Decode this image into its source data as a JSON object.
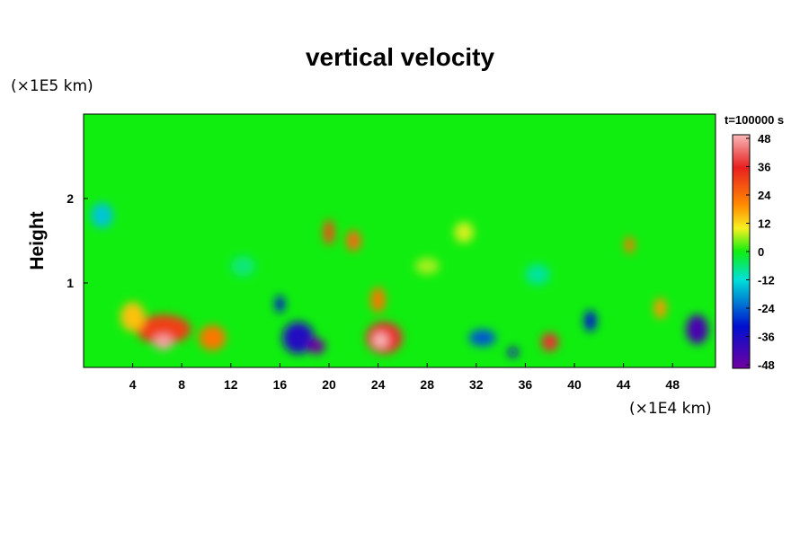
{
  "chart_data": {
    "type": "heatmap",
    "title": "vertical velocity",
    "subtitle": "",
    "ylabel": "Height",
    "xlabel": "",
    "x_unit": "(×1E4 km)",
    "y_unit": "(×1E5 km)",
    "time_label": "t=100000 s",
    "xlim": [
      0,
      51.5
    ],
    "ylim": [
      0,
      3
    ],
    "x_ticks": [
      4,
      8,
      12,
      16,
      20,
      24,
      28,
      32,
      36,
      40,
      44,
      48
    ],
    "y_ticks": [
      1,
      2
    ],
    "colorbar": {
      "min": -48,
      "max": 48,
      "ticks": [
        48,
        36,
        24,
        12,
        0,
        -12,
        -24,
        -36,
        -48
      ],
      "colors": [
        "#f8b8b8",
        "#e82020",
        "#ff8a00",
        "#f8f020",
        "#10ee10",
        "#00e0d8",
        "#0010d0",
        "#7000a0"
      ]
    },
    "background_value": 0,
    "features": [
      {
        "x": 6.5,
        "y": 0.45,
        "w": 4.5,
        "h": 0.35,
        "value": 30
      },
      {
        "x": 6.5,
        "y": 0.3,
        "w": 1.6,
        "h": 0.18,
        "value": 46
      },
      {
        "x": 10.5,
        "y": 0.35,
        "w": 2.2,
        "h": 0.3,
        "value": 22
      },
      {
        "x": 4.0,
        "y": 0.6,
        "w": 2.0,
        "h": 0.35,
        "value": 14
      },
      {
        "x": 17.5,
        "y": 0.35,
        "w": 2.6,
        "h": 0.38,
        "value": -36
      },
      {
        "x": 19.0,
        "y": 0.25,
        "w": 1.4,
        "h": 0.18,
        "value": -48
      },
      {
        "x": 16.0,
        "y": 0.75,
        "w": 0.8,
        "h": 0.2,
        "value": -30
      },
      {
        "x": 24.5,
        "y": 0.35,
        "w": 3.0,
        "h": 0.38,
        "value": 36
      },
      {
        "x": 24.2,
        "y": 0.32,
        "w": 1.2,
        "h": 0.18,
        "value": 48
      },
      {
        "x": 24.0,
        "y": 0.8,
        "w": 1.2,
        "h": 0.3,
        "value": 22
      },
      {
        "x": 20.0,
        "y": 1.6,
        "w": 0.9,
        "h": 0.3,
        "value": 28
      },
      {
        "x": 22.0,
        "y": 1.5,
        "w": 1.2,
        "h": 0.25,
        "value": 24
      },
      {
        "x": 32.5,
        "y": 0.35,
        "w": 2.2,
        "h": 0.2,
        "value": -24
      },
      {
        "x": 35.0,
        "y": 0.18,
        "w": 0.8,
        "h": 0.12,
        "value": -36
      },
      {
        "x": 38.0,
        "y": 0.3,
        "w": 1.4,
        "h": 0.22,
        "value": 36
      },
      {
        "x": 41.3,
        "y": 0.55,
        "w": 1.0,
        "h": 0.25,
        "value": -30
      },
      {
        "x": 50.0,
        "y": 0.45,
        "w": 1.8,
        "h": 0.35,
        "value": -42
      },
      {
        "x": 47.0,
        "y": 0.7,
        "w": 1.0,
        "h": 0.25,
        "value": 18
      },
      {
        "x": 1.5,
        "y": 1.8,
        "w": 1.8,
        "h": 0.3,
        "value": -14
      },
      {
        "x": 31.0,
        "y": 1.6,
        "w": 1.6,
        "h": 0.25,
        "value": 8
      },
      {
        "x": 44.5,
        "y": 1.45,
        "w": 0.8,
        "h": 0.2,
        "value": 22
      },
      {
        "x": 13.0,
        "y": 1.2,
        "w": 2.0,
        "h": 0.25,
        "value": -6
      },
      {
        "x": 28.0,
        "y": 1.2,
        "w": 2.0,
        "h": 0.2,
        "value": 6
      },
      {
        "x": 37.0,
        "y": 1.1,
        "w": 2.0,
        "h": 0.25,
        "value": -8
      }
    ]
  }
}
